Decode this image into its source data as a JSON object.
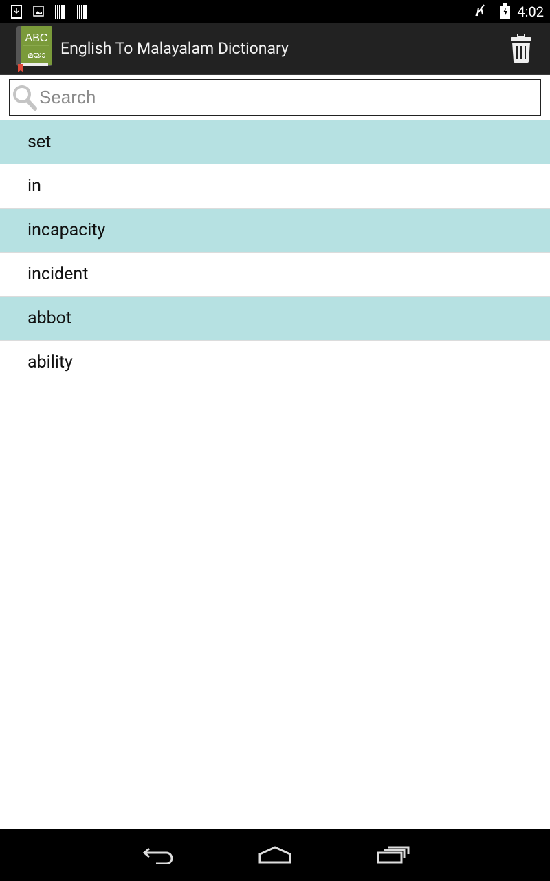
{
  "status_bar": {
    "time": "4:02",
    "left_icons": [
      "download-icon",
      "image-icon",
      "barcode-icon",
      "barcode-icon"
    ],
    "right_icons": [
      "mute-icon",
      "battery-charging-icon"
    ]
  },
  "app_bar": {
    "title": "English To Malayalam Dictionary",
    "logo_text": [
      "ABC",
      "മയാ"
    ],
    "logo_color": "#7a9a3a",
    "delete_icon": "trash-icon"
  },
  "search": {
    "placeholder": "Search",
    "value": "",
    "icon": "search-icon"
  },
  "history": {
    "highlight_color": "#b6e1e2",
    "items": [
      {
        "word": "set"
      },
      {
        "word": "in"
      },
      {
        "word": "incapacity"
      },
      {
        "word": "incident"
      },
      {
        "word": "abbot"
      },
      {
        "word": "ability"
      }
    ]
  },
  "nav_bar": {
    "buttons": [
      "back",
      "home",
      "recents"
    ]
  }
}
